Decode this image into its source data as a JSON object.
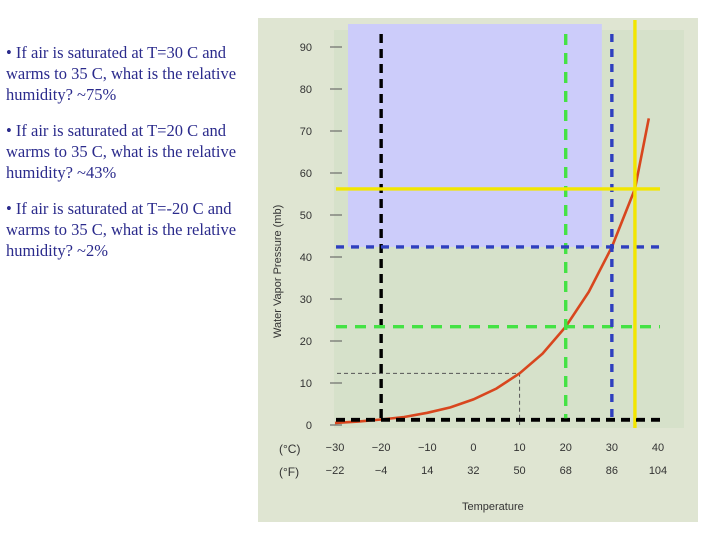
{
  "bullets": [
    "• If air is saturated at T=30 C and warms to 35 C, what is the relative humidity? ~75%",
    "• If air is saturated at T=20 C and warms to 35 C, what is the relative humidity? ~43%",
    "• If air is saturated at T=-20 C and warms to 35 C, what is the relative humidity? ~2%"
  ],
  "chart_data": {
    "type": "line",
    "ylabel": "Water Vapor Pressure (mb)",
    "xlabel": "Temperature",
    "celsius_unit": "(°C)",
    "fahrenheit_unit": "(°F)",
    "xlim": [
      -30,
      40
    ],
    "ylim": [
      0,
      90
    ],
    "x_ticks_c": [
      "−30",
      "−20",
      "−10",
      "0",
      "10",
      "20",
      "30",
      "40"
    ],
    "x_ticks_f": [
      "−22",
      "−4",
      "14",
      "32",
      "50",
      "68",
      "86",
      "104"
    ],
    "y_ticks": [
      "0",
      "10",
      "20",
      "30",
      "40",
      "50",
      "60",
      "70",
      "80",
      "90"
    ],
    "series": [
      {
        "x": [
          -30,
          -25,
          -20,
          -15,
          -10,
          -5,
          0,
          5,
          10,
          15,
          20,
          25,
          30,
          35,
          38
        ],
        "y": [
          0.5,
          0.8,
          1.3,
          1.9,
          2.9,
          4.2,
          6.1,
          8.7,
          12.3,
          17.0,
          23.4,
          31.7,
          42.4,
          56.2,
          73
        ]
      }
    ],
    "reference_lines": [
      {
        "color": "#000000",
        "x": -20,
        "y": 1.3
      },
      {
        "color": "#2f3fbf",
        "x": 30,
        "y": 42.4
      },
      {
        "color": "#44e244",
        "x": 20,
        "y": 23.4
      },
      {
        "color": "#f2e600",
        "x": 35,
        "y": 56.2
      }
    ],
    "thin_reference": {
      "x": 10,
      "y": 12.3
    },
    "colors": {
      "background": "#dfe5d2",
      "highlight": "#ccccfa",
      "curve": "#d8461e"
    }
  }
}
